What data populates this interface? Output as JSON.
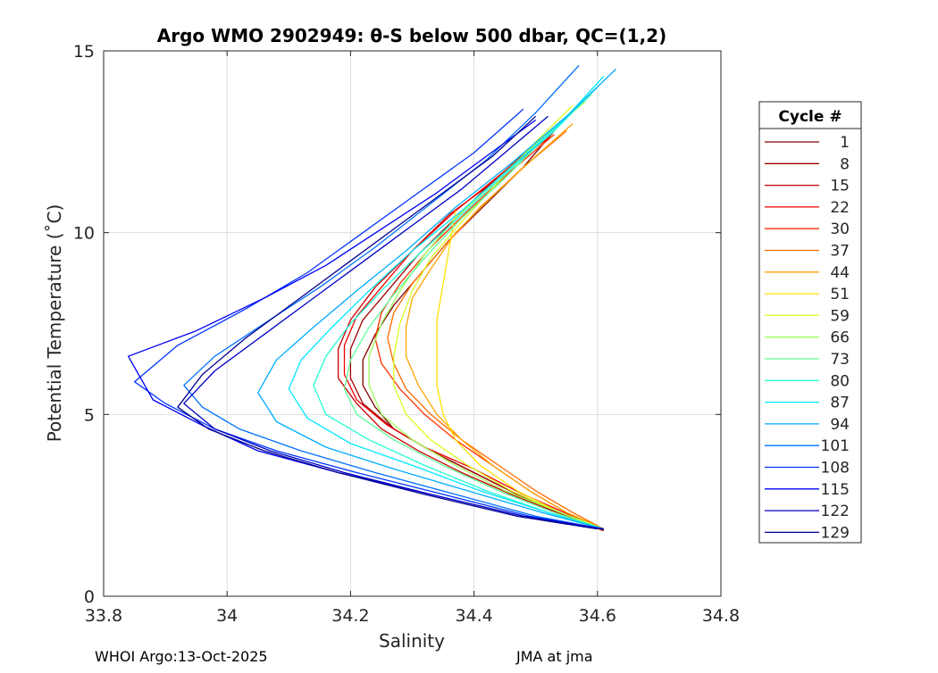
{
  "chart_data": {
    "type": "line",
    "title": "Argo WMO 2902949: θ-S below 500 dbar,  QC=(1,2)",
    "xlabel": "Salinity",
    "ylabel": "Potential Temperature (˚C)",
    "xlim": [
      33.8,
      34.8
    ],
    "ylim": [
      0,
      15
    ],
    "xticks": [
      "33.8",
      "34",
      "34.2",
      "34.4",
      "34.6",
      "34.8"
    ],
    "yticks": [
      "0",
      "5",
      "10",
      "15"
    ],
    "grid": true,
    "legend": {
      "title": "Cycle #",
      "placement": "outside-right",
      "entries": [
        {
          "label": "1",
          "color": "#800000"
        },
        {
          "label": "8",
          "color": "#a00000"
        },
        {
          "label": "15",
          "color": "#c80000"
        },
        {
          "label": "22",
          "color": "#f00000"
        },
        {
          "label": "30",
          "color": "#ff3000"
        },
        {
          "label": "37",
          "color": "#ff6a00"
        },
        {
          "label": "44",
          "color": "#ffa400"
        },
        {
          "label": "51",
          "color": "#ffe000"
        },
        {
          "label": "59",
          "color": "#d8ff20"
        },
        {
          "label": "66",
          "color": "#9cff5c"
        },
        {
          "label": "73",
          "color": "#60ff98"
        },
        {
          "label": "80",
          "color": "#24ffd4"
        },
        {
          "label": "87",
          "color": "#00e8ff"
        },
        {
          "label": "94",
          "color": "#00acff"
        },
        {
          "label": "101",
          "color": "#0070ff"
        },
        {
          "label": "108",
          "color": "#0034ff"
        },
        {
          "label": "115",
          "color": "#0000f8"
        },
        {
          "label": "122",
          "color": "#0000c4"
        },
        {
          "label": "129",
          "color": "#00008f"
        }
      ]
    },
    "series": [
      {
        "label": "1",
        "color": "#800000",
        "x": [
          34.61,
          34.55,
          34.47,
          34.4,
          34.33,
          34.27,
          34.24,
          34.22,
          34.22,
          34.24,
          34.27,
          34.31,
          34.36,
          34.42,
          34.48,
          34.53
        ],
        "y": [
          1.8,
          2.2,
          2.8,
          3.4,
          4.0,
          4.6,
          5.2,
          5.8,
          6.5,
          7.2,
          8.0,
          8.8,
          9.8,
          10.8,
          11.8,
          12.8
        ]
      },
      {
        "label": "8",
        "color": "#a00000",
        "x": [
          34.61,
          34.55,
          34.47,
          34.4,
          34.33,
          34.27,
          34.22,
          34.2,
          34.2,
          34.22,
          34.26,
          34.31,
          34.37,
          34.43,
          34.49
        ],
        "y": [
          1.82,
          2.2,
          2.8,
          3.4,
          4.0,
          4.6,
          5.3,
          6.0,
          6.8,
          7.6,
          8.4,
          9.4,
          10.4,
          11.4,
          12.3
        ]
      },
      {
        "label": "15",
        "color": "#c80000",
        "x": [
          34.61,
          34.55,
          34.46,
          34.38,
          34.31,
          34.25,
          34.21,
          34.18,
          34.18,
          34.2,
          34.24,
          34.3,
          34.36,
          34.44,
          34.5
        ],
        "y": [
          1.85,
          2.2,
          2.8,
          3.4,
          4.0,
          4.6,
          5.3,
          6.0,
          6.8,
          7.6,
          8.5,
          9.5,
          10.5,
          11.5,
          12.4
        ]
      },
      {
        "label": "22",
        "color": "#f00000",
        "x": [
          34.61,
          34.56,
          34.48,
          34.4,
          34.32,
          34.26,
          34.21,
          34.19,
          34.19,
          34.21,
          34.25,
          34.3,
          34.37,
          34.45,
          34.52
        ],
        "y": [
          1.85,
          2.2,
          2.8,
          3.5,
          4.1,
          4.7,
          5.4,
          6.1,
          6.9,
          7.7,
          8.5,
          9.5,
          10.6,
          11.7,
          12.6
        ]
      },
      {
        "label": "30",
        "color": "#ff3000",
        "x": [
          34.61,
          34.55,
          34.49,
          34.43,
          34.37,
          34.32,
          34.28,
          34.25,
          34.24,
          34.25,
          34.28,
          34.33,
          34.39,
          34.46,
          34.53
        ],
        "y": [
          1.85,
          2.3,
          2.9,
          3.6,
          4.3,
          5.0,
          5.7,
          6.4,
          7.1,
          7.8,
          8.6,
          9.6,
          10.6,
          11.7,
          12.7
        ]
      },
      {
        "label": "37",
        "color": "#ff6a00",
        "x": [
          34.61,
          34.56,
          34.5,
          34.44,
          34.38,
          34.33,
          34.29,
          34.27,
          34.26,
          34.27,
          34.3,
          34.35,
          34.41,
          34.48,
          34.55
        ],
        "y": [
          1.85,
          2.3,
          2.9,
          3.6,
          4.3,
          5.0,
          5.7,
          6.4,
          7.1,
          7.8,
          8.6,
          9.6,
          10.7,
          11.8,
          12.8
        ]
      },
      {
        "label": "44",
        "color": "#ffa400",
        "x": [
          34.61,
          34.55,
          34.49,
          34.43,
          34.38,
          34.34,
          34.31,
          34.29,
          34.29,
          34.3,
          34.33,
          34.37,
          34.43,
          34.5,
          34.56
        ],
        "y": [
          1.85,
          2.3,
          2.9,
          3.6,
          4.3,
          5.0,
          5.8,
          6.6,
          7.4,
          8.2,
          9.0,
          10.0,
          11.0,
          12.1,
          13.0
        ]
      },
      {
        "label": "51",
        "color": "#ffe000",
        "x": [
          34.61,
          34.54,
          34.47,
          34.41,
          34.37,
          34.35,
          34.34,
          34.34,
          34.34,
          34.35,
          34.36,
          34.37
        ],
        "y": [
          1.85,
          2.3,
          2.9,
          3.6,
          4.3,
          5.0,
          5.8,
          6.6,
          7.6,
          8.6,
          9.6,
          10.6
        ]
      },
      {
        "label": "59",
        "color": "#d8ff20",
        "x": [
          34.61,
          34.54,
          34.46,
          34.39,
          34.33,
          34.29,
          34.27,
          34.27,
          34.28,
          34.3,
          34.33,
          34.38,
          34.44,
          34.5,
          34.56
        ],
        "y": [
          1.85,
          2.3,
          2.9,
          3.6,
          4.3,
          5.0,
          5.8,
          6.6,
          7.5,
          8.4,
          9.3,
          10.3,
          11.4,
          12.5,
          13.5
        ]
      },
      {
        "label": "66",
        "color": "#9cff5c",
        "x": [
          34.61,
          34.54,
          34.45,
          34.37,
          34.3,
          34.25,
          34.23,
          34.23,
          34.25,
          34.28,
          34.32,
          34.37,
          34.44,
          34.51,
          34.58
        ],
        "y": [
          1.85,
          2.3,
          2.9,
          3.6,
          4.3,
          5.0,
          5.8,
          6.6,
          7.5,
          8.4,
          9.4,
          10.4,
          11.5,
          12.6,
          13.6
        ]
      },
      {
        "label": "73",
        "color": "#60ff98",
        "x": [
          34.61,
          34.53,
          34.44,
          34.35,
          34.27,
          34.21,
          34.19,
          34.2,
          34.23,
          34.27,
          34.32,
          34.38,
          34.45,
          34.52,
          34.59
        ],
        "y": [
          1.85,
          2.3,
          2.9,
          3.6,
          4.3,
          5.0,
          5.7,
          6.5,
          7.4,
          8.3,
          9.3,
          10.4,
          11.5,
          12.7,
          13.8
        ]
      },
      {
        "label": "80",
        "color": "#24ffd4",
        "x": [
          34.61,
          34.52,
          34.42,
          34.32,
          34.23,
          34.16,
          34.14,
          34.16,
          34.2,
          34.25,
          34.31,
          34.38,
          34.45,
          34.53,
          34.6
        ],
        "y": [
          1.85,
          2.3,
          2.9,
          3.6,
          4.3,
          5.0,
          5.8,
          6.6,
          7.5,
          8.4,
          9.4,
          10.5,
          11.6,
          12.8,
          14.0
        ]
      },
      {
        "label": "87",
        "color": "#00e8ff",
        "x": [
          34.61,
          34.52,
          34.41,
          34.3,
          34.2,
          34.13,
          34.1,
          34.12,
          34.17,
          34.23,
          34.3,
          34.38,
          34.46,
          34.54,
          34.61
        ],
        "y": [
          1.85,
          2.3,
          2.9,
          3.6,
          4.2,
          4.9,
          5.7,
          6.5,
          7.4,
          8.4,
          9.5,
          10.6,
          11.8,
          13.0,
          14.3
        ]
      },
      {
        "label": "94",
        "color": "#00acff",
        "x": [
          34.61,
          34.51,
          34.39,
          34.27,
          34.16,
          34.08,
          34.05,
          34.08,
          34.14,
          34.21,
          34.29,
          34.37,
          34.46,
          34.55,
          34.63
        ],
        "y": [
          1.85,
          2.3,
          2.9,
          3.5,
          4.1,
          4.8,
          5.6,
          6.5,
          7.4,
          8.4,
          9.5,
          10.7,
          11.9,
          13.2,
          14.5
        ]
      },
      {
        "label": "101",
        "color": "#0070ff",
        "x": [
          34.61,
          34.5,
          34.37,
          34.24,
          34.12,
          34.02,
          33.96,
          33.93,
          33.98,
          34.06,
          34.15,
          34.24,
          34.33,
          34.42,
          34.5,
          34.57
        ],
        "y": [
          1.85,
          2.2,
          2.8,
          3.4,
          4.0,
          4.6,
          5.2,
          5.8,
          6.6,
          7.5,
          8.5,
          9.6,
          10.8,
          12.0,
          13.3,
          14.6
        ]
      },
      {
        "label": "108",
        "color": "#0034ff",
        "x": [
          34.61,
          34.49,
          34.35,
          34.21,
          34.08,
          33.98,
          33.9,
          33.85,
          33.92,
          34.03,
          34.13,
          34.22,
          34.31,
          34.4,
          34.48
        ],
        "y": [
          1.85,
          2.2,
          2.8,
          3.4,
          4.0,
          4.6,
          5.3,
          5.9,
          6.9,
          7.9,
          8.9,
          10.0,
          11.1,
          12.2,
          13.4
        ]
      },
      {
        "label": "115",
        "color": "#0000f8",
        "x": [
          34.61,
          34.48,
          34.33,
          34.18,
          34.05,
          33.96,
          33.88,
          33.84,
          33.95,
          34.06,
          34.16,
          34.25,
          34.34,
          34.42,
          34.5
        ],
        "y": [
          1.85,
          2.2,
          2.8,
          3.4,
          4.0,
          4.7,
          5.4,
          6.6,
          7.3,
          8.2,
          9.1,
          10.1,
          11.1,
          12.1,
          13.1
        ]
      },
      {
        "label": "122",
        "color": "#0000c4",
        "x": [
          34.61,
          34.48,
          34.33,
          34.19,
          34.07,
          33.98,
          33.93,
          33.98,
          34.06,
          34.14,
          34.22,
          34.3,
          34.38,
          34.45,
          34.52
        ],
        "y": [
          1.85,
          2.2,
          2.8,
          3.4,
          4.0,
          4.6,
          5.3,
          6.2,
          7.2,
          8.2,
          9.2,
          10.2,
          11.2,
          12.2,
          13.2
        ]
      },
      {
        "label": "129",
        "color": "#00008f",
        "x": [
          34.6,
          34.47,
          34.32,
          34.18,
          34.06,
          33.97,
          33.92,
          33.96,
          34.03,
          34.11,
          34.19,
          34.27,
          34.35,
          34.43,
          34.5
        ],
        "y": [
          1.85,
          2.2,
          2.8,
          3.4,
          4.0,
          4.6,
          5.2,
          6.1,
          7.1,
          8.1,
          9.1,
          10.1,
          11.1,
          12.1,
          13.2
        ]
      }
    ]
  },
  "footer": {
    "left": "WHOI Argo:13-Oct-2025",
    "right": "JMA at jma"
  }
}
